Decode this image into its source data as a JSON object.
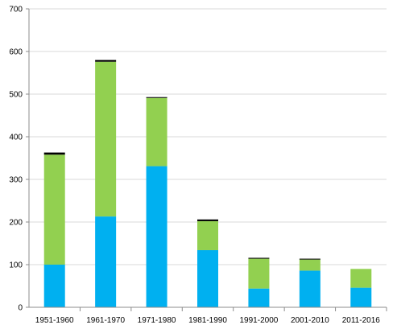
{
  "chart_data": {
    "type": "bar",
    "stacked": true,
    "categories": [
      "1951-1960",
      "1961-1970",
      "1971-1980",
      "1981-1990",
      "1991-2000",
      "2001-2010",
      "2011-2016"
    ],
    "series": [
      {
        "color": "#00b0f0",
        "values": [
          100,
          213,
          331,
          134,
          44,
          86,
          46
        ]
      },
      {
        "color": "#92d050",
        "values": [
          258,
          363,
          160,
          68,
          70,
          26,
          44
        ]
      },
      {
        "color": "#000000",
        "values": [
          5,
          4,
          2,
          4,
          2,
          2,
          0
        ]
      }
    ],
    "y_ticks": [
      "0",
      "100",
      "200",
      "300",
      "400",
      "500",
      "600",
      "700"
    ],
    "ylim": [
      0,
      700
    ],
    "grid": true,
    "legend": "none"
  }
}
